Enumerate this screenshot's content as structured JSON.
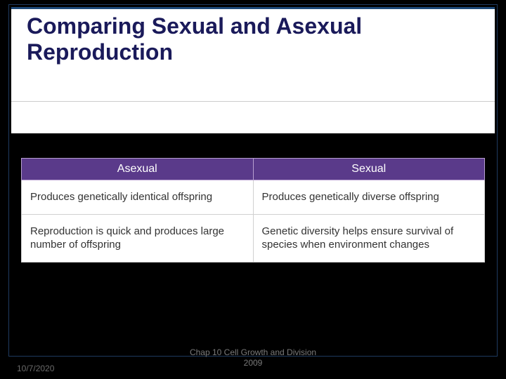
{
  "slide": {
    "title": "Comparing Sexual and Asexual Reproduction",
    "title_color": "#1a1a5a",
    "title_fontsize": 32
  },
  "table": {
    "type": "table",
    "header_bg": "#5a3a8a",
    "header_color": "#ffffff",
    "cell_border": "#d0d0d0",
    "columns": [
      "Asexual",
      "Sexual"
    ],
    "rows": [
      [
        "Produces genetically identical offspring",
        "Produces genetically diverse offspring"
      ],
      [
        "Reproduction is quick and produces large number of offspring",
        "Genetic diversity helps ensure survival of species when environment changes"
      ]
    ]
  },
  "footer": {
    "chapter_line1": "Chap 10  Cell Growth and Division",
    "chapter_line2": "2009",
    "date": "10/7/2020"
  },
  "colors": {
    "background": "#000000",
    "panel_bg": "#ffffff",
    "panel_topborder": "#1e4a7a",
    "slide_border": "#1e3a5f"
  }
}
